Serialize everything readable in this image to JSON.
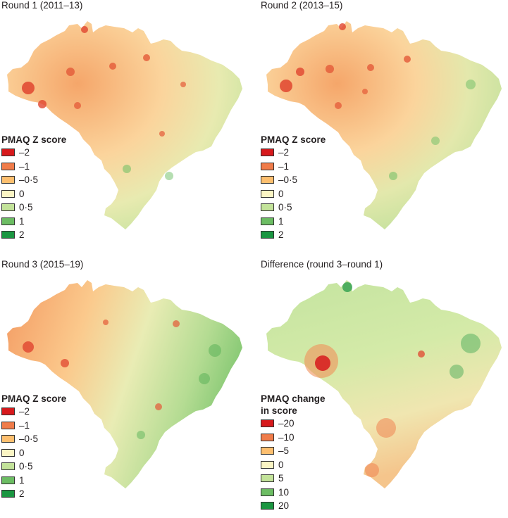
{
  "panels": [
    {
      "title": "Round 1 (2011–13)",
      "legend_title": [
        "PMAQ Z score"
      ],
      "legend": [
        {
          "label": "–2",
          "color": "#d7191c"
        },
        {
          "label": "–1",
          "color": "#f07c4a"
        },
        {
          "label": "–0·5",
          "color": "#fdbf6f"
        },
        {
          "label": "0",
          "color": "#fbf5c4"
        },
        {
          "label": "0·5",
          "color": "#c3e39a"
        },
        {
          "label": "1",
          "color": "#6cbd63"
        },
        {
          "label": "2",
          "color": "#1a9641"
        }
      ]
    },
    {
      "title": "Round 2 (2013–15)",
      "legend_title": [
        "PMAQ Z score"
      ],
      "legend": [
        {
          "label": "–2",
          "color": "#d7191c"
        },
        {
          "label": "–1",
          "color": "#f07c4a"
        },
        {
          "label": "–0·5",
          "color": "#fdbf6f"
        },
        {
          "label": "0",
          "color": "#fbf5c4"
        },
        {
          "label": "0·5",
          "color": "#c3e39a"
        },
        {
          "label": "1",
          "color": "#6cbd63"
        },
        {
          "label": "2",
          "color": "#1a9641"
        }
      ]
    },
    {
      "title": "Round 3 (2015–19)",
      "legend_title": [
        "PMAQ Z score"
      ],
      "legend": [
        {
          "label": "–2",
          "color": "#d7191c"
        },
        {
          "label": "–1",
          "color": "#f07c4a"
        },
        {
          "label": "–0·5",
          "color": "#fdbf6f"
        },
        {
          "label": "0",
          "color": "#fbf5c4"
        },
        {
          "label": "0·5",
          "color": "#c3e39a"
        },
        {
          "label": "1",
          "color": "#6cbd63"
        },
        {
          "label": "2",
          "color": "#1a9641"
        }
      ]
    },
    {
      "title": "Difference (round 3–round 1)",
      "legend_title": [
        "PMAQ change",
        "in score"
      ],
      "legend": [
        {
          "label": "–20",
          "color": "#d7191c"
        },
        {
          "label": "–10",
          "color": "#f07c4a"
        },
        {
          "label": "–5",
          "color": "#fdbf6f"
        },
        {
          "label": "0",
          "color": "#fbf5c4"
        },
        {
          "label": "5",
          "color": "#c3e39a"
        },
        {
          "label": "10",
          "color": "#6cbd63"
        },
        {
          "label": "20",
          "color": "#1a9641"
        }
      ]
    }
  ]
}
